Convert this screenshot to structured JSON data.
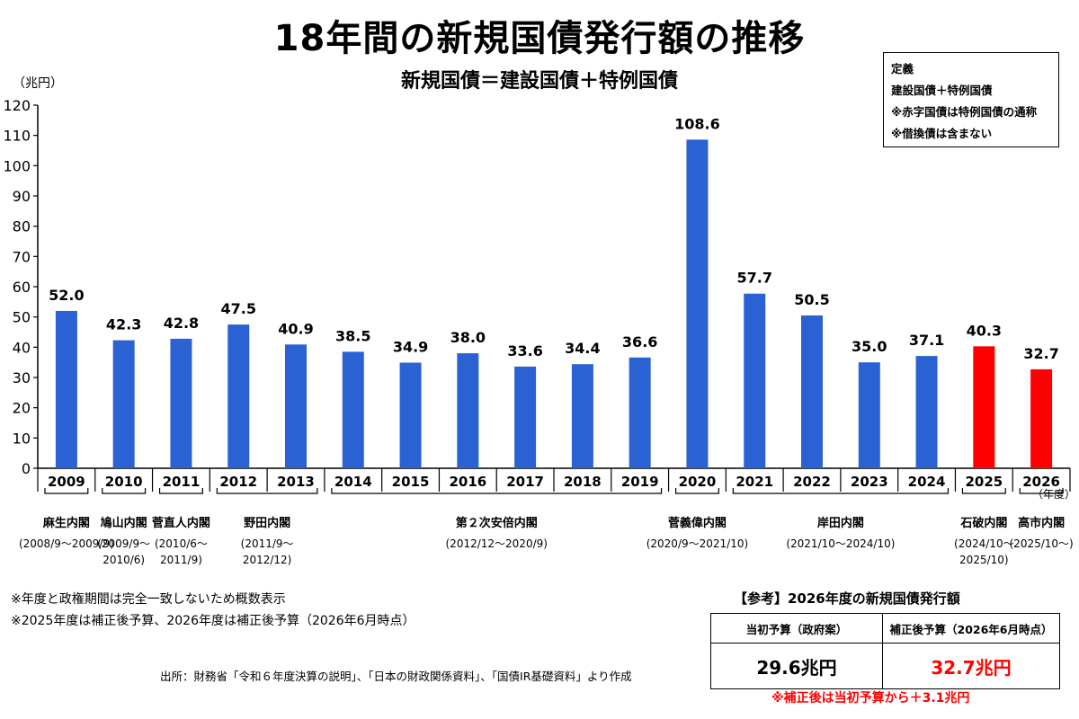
{
  "title": "18年間の新規国債発行額の推移",
  "subtitle": "新規国債＝建設国債＋特例国債",
  "unit_label": "（兆円）",
  "definition": {
    "heading": "定義",
    "lines": [
      "建設国債＋特例国債",
      "※赤字国債は特例国債の通称",
      "※借換債は含まない"
    ]
  },
  "chart_data": {
    "type": "bar",
    "categories": [
      "2009",
      "2010",
      "2011",
      "2012",
      "2013",
      "2014",
      "2015",
      "2016",
      "2017",
      "2018",
      "2019",
      "2020",
      "2021",
      "2022",
      "2023",
      "2024",
      "2025",
      "2026"
    ],
    "values": [
      52.0,
      42.3,
      42.8,
      47.5,
      40.9,
      38.5,
      34.9,
      38.0,
      33.6,
      34.4,
      36.6,
      108.6,
      57.7,
      50.5,
      35.0,
      37.1,
      40.3,
      32.7
    ],
    "value_labels": [
      "52.0",
      "42.3",
      "42.8",
      "47.5",
      "40.9",
      "38.5",
      "34.9",
      "38.0",
      "33.6",
      "34.4",
      "36.6",
      "108.6",
      "57.7",
      "50.5",
      "35.0",
      "37.1",
      "40.3",
      "32.7"
    ],
    "bar_colors": [
      "#2a62d4",
      "#2a62d4",
      "#2a62d4",
      "#2a62d4",
      "#2a62d4",
      "#2a62d4",
      "#2a62d4",
      "#2a62d4",
      "#2a62d4",
      "#2a62d4",
      "#2a62d4",
      "#2a62d4",
      "#2a62d4",
      "#2a62d4",
      "#2a62d4",
      "#2a62d4",
      "#ff0000",
      "#ff0000"
    ],
    "ylim": [
      0,
      120
    ],
    "yticks": [
      0,
      10,
      20,
      30,
      40,
      50,
      60,
      70,
      80,
      90,
      100,
      110,
      120
    ],
    "x_unit": "（年度）",
    "grid": false,
    "cabinets": [
      {
        "name": "麻生内閣",
        "period": [
          "(2008/9～2009/9)"
        ],
        "start": 0,
        "end": 0
      },
      {
        "name": "鳩山内閣",
        "period": [
          "(2009/9～",
          "2010/6)"
        ],
        "start": 1,
        "end": 1
      },
      {
        "name": "菅直人内閣",
        "period": [
          "(2010/6～",
          "2011/9)"
        ],
        "start": 2,
        "end": 2
      },
      {
        "name": "野田内閣",
        "period": [
          "(2011/9～",
          "2012/12)"
        ],
        "start": 3,
        "end": 4
      },
      {
        "name": "第２次安倍内閣",
        "period": [
          "(2012/12～2020/9)"
        ],
        "start": 5,
        "end": 10
      },
      {
        "name": "菅義偉内閣",
        "period": [
          "(2020/9～2021/10)"
        ],
        "start": 11,
        "end": 11
      },
      {
        "name": "岸田内閣",
        "period": [
          "(2021/10～2024/10)"
        ],
        "start": 12,
        "end": 15
      },
      {
        "name": "石破内閣",
        "period": [
          "(2024/10～",
          "2025/10)"
        ],
        "start": 16,
        "end": 16
      },
      {
        "name": "高市内閣",
        "period": [
          "(2025/10～)"
        ],
        "start": 17,
        "end": 17
      }
    ]
  },
  "notes": [
    "※年度と政権期間は完全一致しないため概数表示",
    "※2025年度は補正後予算、2026年度は補正後予算（2026年6月時点）"
  ],
  "source": "出所：財務省「令和６年度決算の説明」、「日本の財政関係資料」、「国債IR基礎資料」より作成",
  "reference": {
    "title": "【参考】2026年度の新規国債発行額",
    "headers": [
      "当初予算（政府案）",
      "補正後予算（2026年6月時点）"
    ],
    "values": [
      "29.6兆円",
      "32.7兆円"
    ],
    "note": "※補正後は当初予算から＋3.1兆円",
    "highlight_color": "#ff0000"
  }
}
